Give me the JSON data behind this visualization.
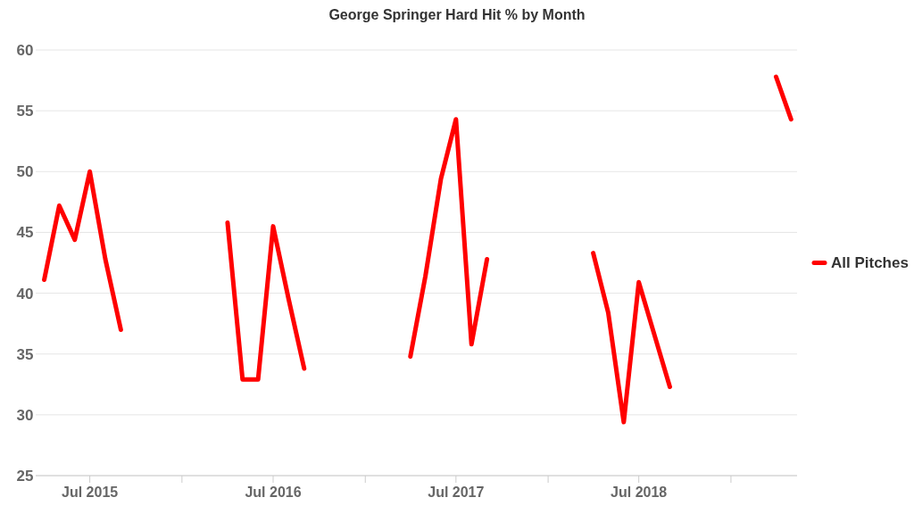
{
  "chart_data": {
    "type": "line",
    "title": "George Springer Hard Hit % by Month",
    "x": [
      "2015-04",
      "2015-05",
      "2015-06",
      "2015-07",
      "2015-08",
      "2015-09",
      "2015-10",
      "2016-04",
      "2016-05",
      "2016-06",
      "2016-07",
      "2016-08",
      "2016-09",
      "2016-10",
      "2017-04",
      "2017-05",
      "2017-06",
      "2017-07",
      "2017-08",
      "2017-09",
      "2017-10",
      "2018-04",
      "2018-05",
      "2018-06",
      "2018-07",
      "2018-08",
      "2018-09",
      "2018-10",
      "2019-04",
      "2019-05"
    ],
    "series": [
      {
        "name": "All Pitches",
        "color": "#ff0000",
        "values": [
          41.1,
          47.2,
          44.4,
          50.0,
          42.8,
          37.0,
          null,
          45.8,
          32.9,
          32.9,
          45.5,
          39.5,
          33.8,
          null,
          34.8,
          41.4,
          49.4,
          54.3,
          35.8,
          42.8,
          null,
          43.3,
          38.4,
          29.4,
          40.9,
          36.6,
          32.3,
          null,
          57.8,
          54.3
        ]
      }
    ],
    "xlim": [
      "2015-03-15",
      "2019-05-13"
    ],
    "xticks": [
      {
        "value": "2015-07",
        "label": "Jul 2015"
      },
      {
        "value": "2016-01",
        "label": null
      },
      {
        "value": "2016-07",
        "label": "Jul 2016"
      },
      {
        "value": "2017-01",
        "label": null
      },
      {
        "value": "2017-07",
        "label": "Jul 2017"
      },
      {
        "value": "2018-01",
        "label": null
      },
      {
        "value": "2018-07",
        "label": "Jul 2018"
      },
      {
        "value": "2019-01",
        "label": null
      }
    ],
    "ylim": [
      25,
      60
    ],
    "yticks": [
      25,
      30,
      35,
      40,
      45,
      50,
      55,
      60
    ],
    "grid": "y",
    "legend": "right",
    "marker": "none",
    "line_style": "solid"
  }
}
